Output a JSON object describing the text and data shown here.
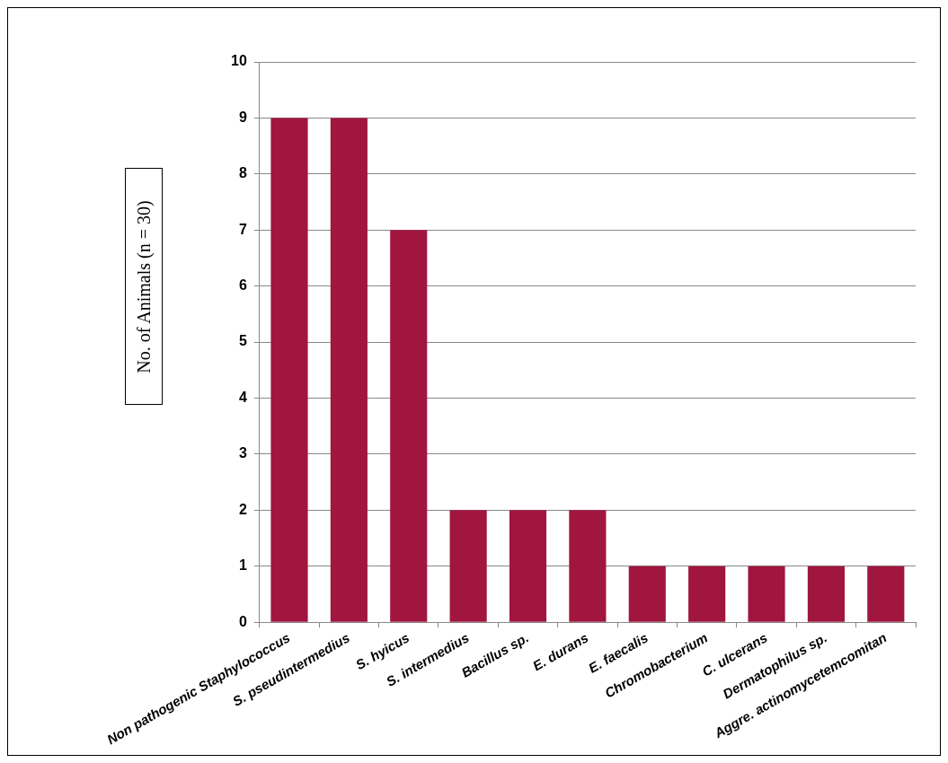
{
  "chart_data": {
    "type": "bar",
    "ylabel": "No. of Animals (n = 30)",
    "categories": [
      "Non pathogenic Staphylococcus",
      "S. pseudintermedius",
      "S. hyicus",
      "S. intermedius",
      "Bacillus sp.",
      "E. durans",
      "E. faecalis",
      "Chromobacterium",
      "C. ulcerans",
      "Dermatophilus sp.",
      "Aggre. actinomycetemcomitan"
    ],
    "values": [
      9,
      9,
      7,
      2,
      2,
      2,
      1,
      1,
      1,
      1,
      1
    ],
    "color": "#a0163e",
    "ylim": [
      0,
      10
    ],
    "yticks": [
      0,
      1,
      2,
      3,
      4,
      5,
      6,
      7,
      8,
      9,
      10
    ],
    "grid": "y",
    "legend": false
  }
}
